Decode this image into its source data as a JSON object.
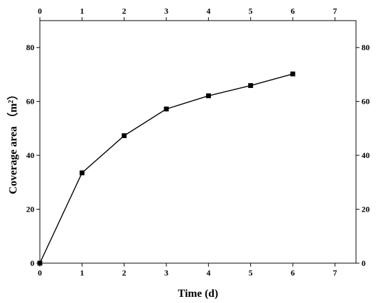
{
  "chart_data": {
    "type": "line",
    "xlabel": "Time (d)",
    "ylabel_main": "Coverage area",
    "ylabel_unit": "m",
    "ylabel_unit_sup": "2",
    "xlim": [
      0,
      7.5
    ],
    "ylim": [
      0,
      90
    ],
    "xticks": [
      0,
      1,
      2,
      3,
      4,
      5,
      6,
      7
    ],
    "xtick_labels": [
      "0",
      "1",
      "2",
      "3",
      "4",
      "5",
      "6",
      "7"
    ],
    "yticks": [
      0,
      20,
      40,
      60,
      80
    ],
    "ytick_labels": [
      "0",
      "20",
      "40",
      "60",
      "80"
    ],
    "grid": false,
    "marker": "square",
    "series": [
      {
        "x": [
          0,
          1,
          2,
          3,
          4,
          5,
          6
        ],
        "y": [
          0,
          33.5,
          47.3,
          57.2,
          62.1,
          65.9,
          70.2
        ],
        "color": "#000000"
      }
    ]
  }
}
